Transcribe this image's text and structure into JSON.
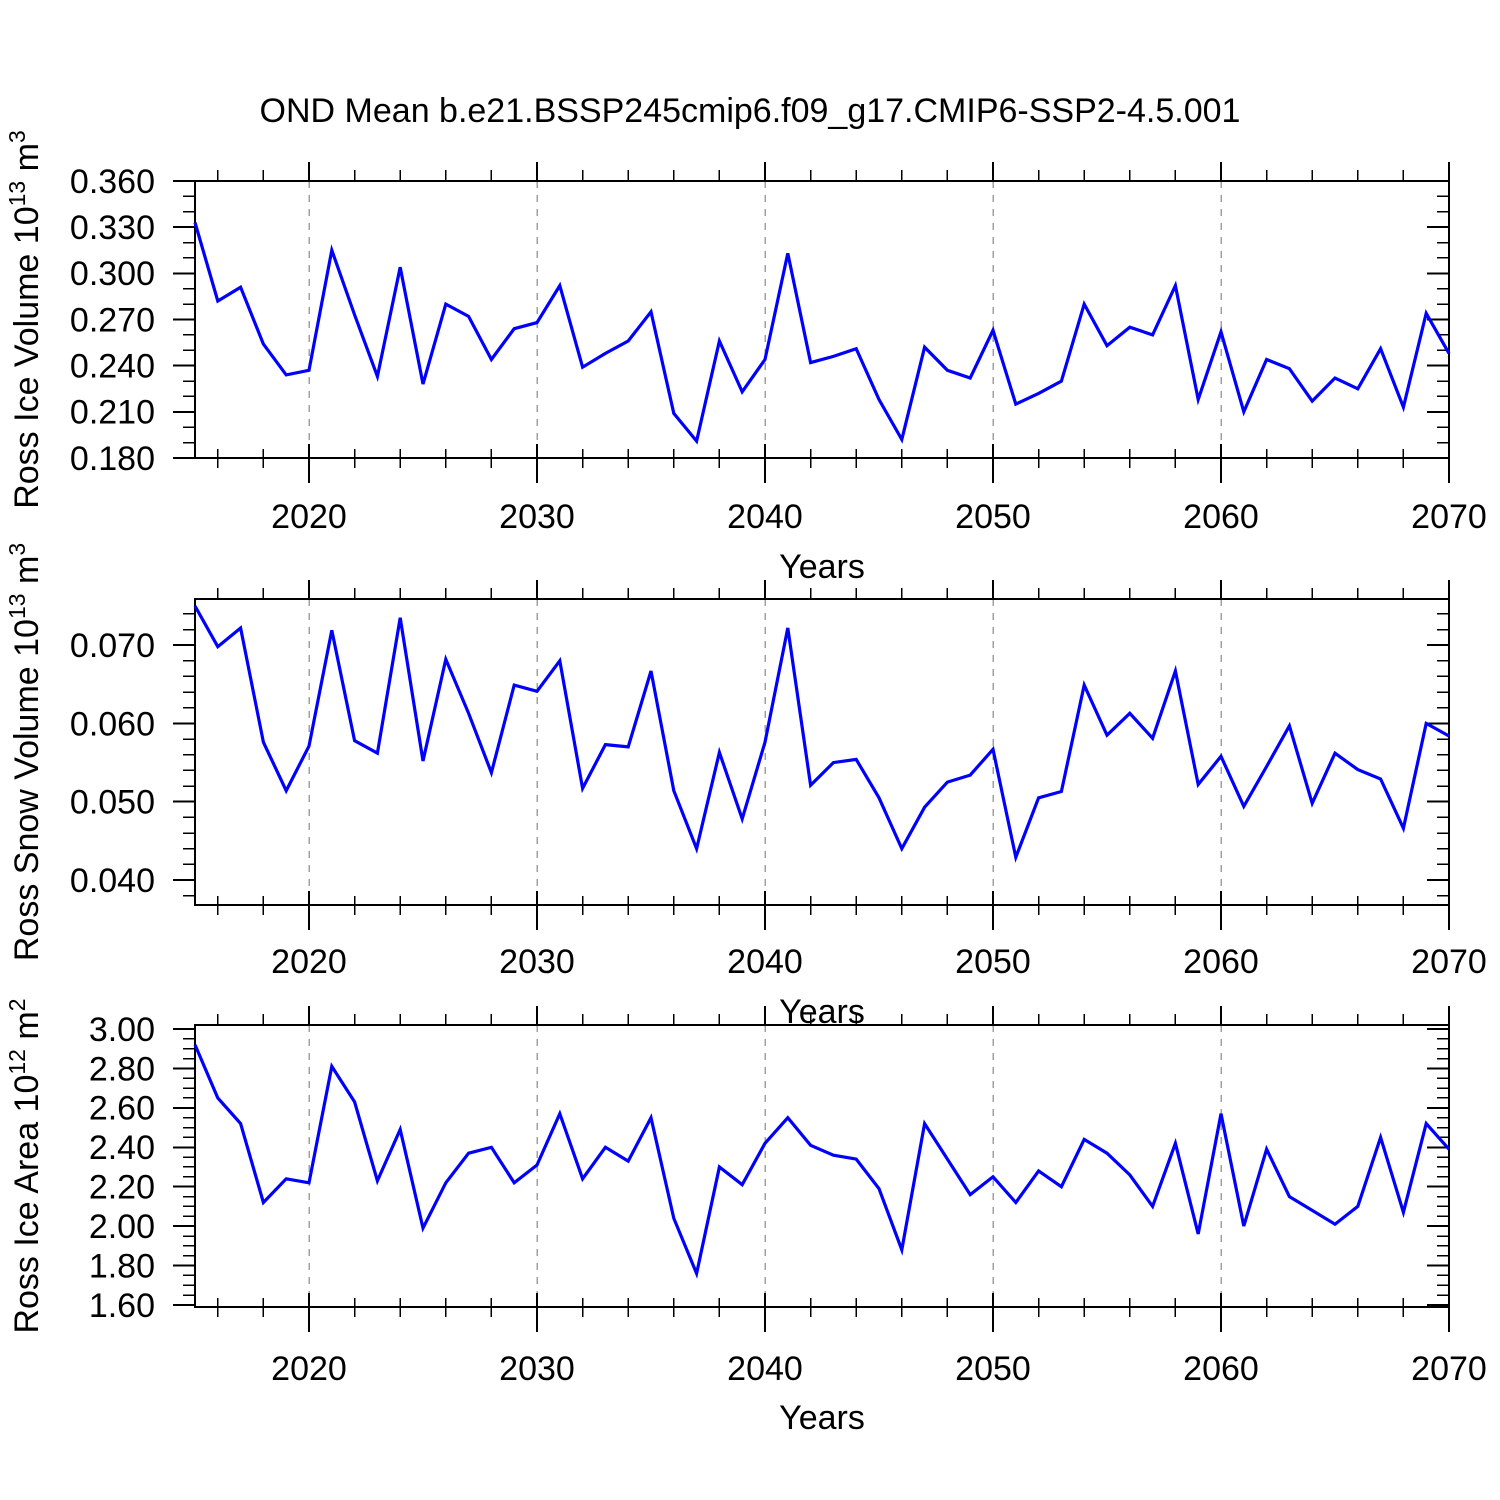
{
  "title": "OND Mean b.e21.BSSP245cmip6.f09_g17.CMIP6-SSP2-4.5.001",
  "colors": {
    "line": "#0000ff",
    "grid": "#a0a0a0",
    "frame": "#000000",
    "text": "#000000",
    "background": "#ffffff"
  },
  "chart_data": [
    {
      "type": "line",
      "id": "ross-ice-volume",
      "ylabel_parts": [
        [
          "Ross Ice Volume 10",
          0
        ],
        [
          "13",
          1
        ],
        [
          " m",
          0
        ],
        [
          "3",
          1
        ]
      ],
      "xlabel": "Years",
      "x_start": 2015,
      "x_end": 2070,
      "x_step": 1,
      "values": [
        0.333,
        0.282,
        0.291,
        0.254,
        0.234,
        0.237,
        0.315,
        0.273,
        0.233,
        0.304,
        0.228,
        0.28,
        0.272,
        0.244,
        0.264,
        0.268,
        0.292,
        0.239,
        0.248,
        0.256,
        0.275,
        0.209,
        0.191,
        0.256,
        0.223,
        0.244,
        0.313,
        0.242,
        0.246,
        0.251,
        0.218,
        0.192,
        0.252,
        0.237,
        0.232,
        0.263,
        0.215,
        0.222,
        0.23,
        0.28,
        0.253,
        0.265,
        0.26,
        0.292,
        0.218,
        0.262,
        0.21,
        0.244,
        0.238,
        0.217,
        0.232,
        0.225,
        0.251,
        0.213,
        0.274,
        0.248
      ],
      "ylim": [
        0.18,
        0.36
      ],
      "yticks": [
        0.18,
        0.21,
        0.24,
        0.27,
        0.3,
        0.33,
        0.36
      ],
      "ytick_labels": [
        "0.180",
        "0.210",
        "0.240",
        "0.270",
        "0.300",
        "0.330",
        "0.360"
      ],
      "ytick_minor_step": 0.01,
      "xlim": [
        2015,
        2070
      ],
      "xticks": [
        2020,
        2030,
        2040,
        2050,
        2060,
        2070
      ],
      "xtick_labels": [
        "2020",
        "2030",
        "2040",
        "2050",
        "2060",
        "2070"
      ],
      "xminor_step": 2,
      "grid_years": [
        2020,
        2030,
        2040,
        2050,
        2060
      ]
    },
    {
      "type": "line",
      "id": "ross-snow-volume",
      "ylabel_parts": [
        [
          "Ross Snow Volume 10",
          0
        ],
        [
          "13",
          1
        ],
        [
          " m",
          0
        ],
        [
          "3",
          1
        ]
      ],
      "xlabel": "Years",
      "x_start": 2015,
      "x_end": 2070,
      "x_step": 1,
      "values": [
        0.075,
        0.0698,
        0.0722,
        0.0576,
        0.0514,
        0.0571,
        0.0719,
        0.0578,
        0.0562,
        0.0735,
        0.0552,
        0.0682,
        0.0613,
        0.0537,
        0.0649,
        0.0641,
        0.068,
        0.0517,
        0.0573,
        0.057,
        0.0667,
        0.0514,
        0.044,
        0.0563,
        0.0478,
        0.0576,
        0.0722,
        0.0521,
        0.055,
        0.0554,
        0.0505,
        0.044,
        0.0493,
        0.0525,
        0.0534,
        0.0567,
        0.0429,
        0.0505,
        0.0513,
        0.0649,
        0.0585,
        0.0613,
        0.0581,
        0.0667,
        0.0522,
        0.0558,
        0.0494,
        0.0545,
        0.0597,
        0.0498,
        0.0562,
        0.0541,
        0.0529,
        0.0466,
        0.06,
        0.0584
      ],
      "ylim": [
        0.0368,
        0.0759
      ],
      "yticks": [
        0.04,
        0.05,
        0.06,
        0.07
      ],
      "ytick_labels": [
        "0.040",
        "0.050",
        "0.060",
        "0.070"
      ],
      "ytick_minor_step": 0.002,
      "xlim": [
        2015,
        2070
      ],
      "xticks": [
        2020,
        2030,
        2040,
        2050,
        2060,
        2070
      ],
      "xtick_labels": [
        "2020",
        "2030",
        "2040",
        "2050",
        "2060",
        "2070"
      ],
      "xminor_step": 2,
      "grid_years": [
        2020,
        2030,
        2040,
        2050,
        2060
      ]
    },
    {
      "type": "line",
      "id": "ross-ice-area",
      "ylabel_parts": [
        [
          "Ross Ice Area 10",
          0
        ],
        [
          "12",
          1
        ],
        [
          " m",
          0
        ],
        [
          "2",
          1
        ]
      ],
      "xlabel": "Years",
      "x_start": 2015,
      "x_end": 2070,
      "x_step": 1,
      "values": [
        2.92,
        2.65,
        2.52,
        2.12,
        2.24,
        2.22,
        2.81,
        2.63,
        2.23,
        2.49,
        1.99,
        2.22,
        2.37,
        2.4,
        2.22,
        2.31,
        2.57,
        2.24,
        2.4,
        2.33,
        2.55,
        2.04,
        1.76,
        2.3,
        2.21,
        2.42,
        2.55,
        2.41,
        2.36,
        2.34,
        2.19,
        1.88,
        2.52,
        2.34,
        2.16,
        2.25,
        2.12,
        2.28,
        2.2,
        2.44,
        2.37,
        2.26,
        2.1,
        2.42,
        1.96,
        2.57,
        2.0,
        2.39,
        2.15,
        2.08,
        2.01,
        2.1,
        2.45,
        2.07,
        2.52,
        2.39
      ],
      "ylim": [
        1.59,
        3.02
      ],
      "yticks": [
        1.6,
        1.8,
        2.0,
        2.2,
        2.4,
        2.6,
        2.8,
        3.0
      ],
      "ytick_labels": [
        "1.60",
        "1.80",
        "2.00",
        "2.20",
        "2.40",
        "2.60",
        "2.80",
        "3.00"
      ],
      "ytick_minor_step": 0.05,
      "xlim": [
        2015,
        2070
      ],
      "xticks": [
        2020,
        2030,
        2040,
        2050,
        2060,
        2070
      ],
      "xtick_labels": [
        "2020",
        "2030",
        "2040",
        "2050",
        "2060",
        "2070"
      ],
      "xminor_step": 2,
      "grid_years": [
        2020,
        2030,
        2040,
        2050,
        2060
      ]
    }
  ]
}
